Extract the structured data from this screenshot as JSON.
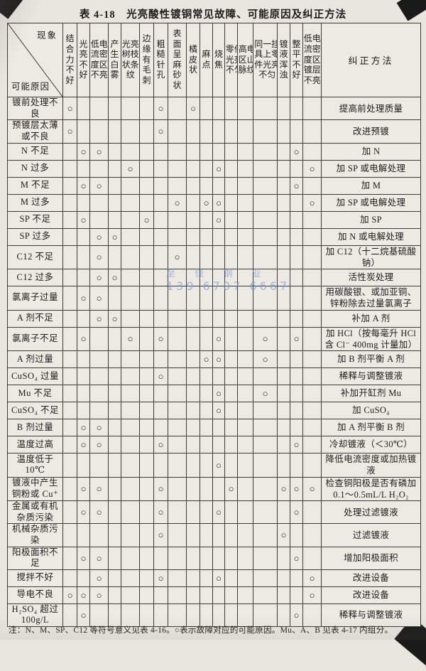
{
  "title": "表 4-18　光亮酸性镀铜常见故障、可能原因及纠正方法",
  "corner": {
    "phenomenon": "现象",
    "cause": "可能原因"
  },
  "correction_header": "纠正方法",
  "mark_symbol": "○",
  "accent_colors": {
    "ink": "#1c1c1c",
    "paper": "#e9e6e0",
    "watermark_blue": "#7d9bd2"
  },
  "columns": [
    {
      "label": "结合力不好",
      "cols": 1
    },
    {
      "label": "光亮不好",
      "cols": 1
    },
    {
      "label": "低电流密度区不亮",
      "cols": 2
    },
    {
      "label": "产生白雾",
      "cols": 1
    },
    {
      "label": "光亮树枝状条纹",
      "cols": 2
    },
    {
      "label": "边缘有毛刺",
      "cols": 1
    },
    {
      "label": "粗糙针孔",
      "cols": 1
    },
    {
      "label": "表面呈麻砂状",
      "cols": 1
    },
    {
      "label": "橘皮状",
      "cols": 1
    },
    {
      "label": "麻点",
      "cols": 1
    },
    {
      "label": "烧焦",
      "cols": 1
    },
    {
      "label": "零件光亮不匀",
      "cols": 2
    },
    {
      "label": "高电区山脉纹",
      "cols": 2
    },
    {
      "label": "同一挂具上零件光亮不匀",
      "cols": 3
    },
    {
      "label": "镀液浑浊",
      "cols": 1
    },
    {
      "label": "整平不好",
      "cols": 1
    },
    {
      "label": "低电流密度区镀层不亮",
      "cols": 2
    }
  ],
  "rows": [
    {
      "cause": "镀前处理不良",
      "marks": [
        0,
        6,
        8
      ],
      "correction": "提高前处理质量"
    },
    {
      "cause": "预镀层太薄或不良",
      "marks": [
        0,
        6
      ],
      "correction": "改进预镀"
    },
    {
      "cause": "N 不足",
      "marks": [
        1,
        2,
        15
      ],
      "correction": "加 N"
    },
    {
      "cause": "N 过多",
      "marks": [
        4,
        10,
        16
      ],
      "correction": "加 SP 或电解处理"
    },
    {
      "cause": "M 不足",
      "marks": [
        1,
        2,
        15
      ],
      "correction": "加 M"
    },
    {
      "cause": "M 过多",
      "marks": [
        7,
        9,
        10,
        16
      ],
      "correction": "加 SP 或电解处理"
    },
    {
      "cause": "SP 不足",
      "marks": [
        1,
        5,
        10
      ],
      "correction": "加 SP"
    },
    {
      "cause": "SP 过多",
      "marks": [
        2,
        3
      ],
      "correction": "加 N 或电解处理"
    },
    {
      "cause": "C12 不足",
      "marks": [
        2,
        7
      ],
      "correction": "加 C12（十二烷基硫酸钠）"
    },
    {
      "cause": "C12 过多",
      "marks": [
        2,
        3
      ],
      "correction": "活性炭处理"
    },
    {
      "cause": "氯离子过量",
      "marks": [
        1,
        2
      ],
      "correction": "用碳酸银、或加亚铜、锌粉除去过量氯离子"
    },
    {
      "cause": "A 剂不足",
      "marks": [
        2,
        3
      ],
      "correction": "补加 A 剂"
    },
    {
      "cause": "氯离子不足",
      "marks": [
        1,
        4,
        6,
        10,
        13,
        15
      ],
      "correction": "加 HCl（按每毫升 HCl 含 Cl⁻ 400mg 计量加）"
    },
    {
      "cause": "A 剂过量",
      "marks": [
        9,
        10,
        13
      ],
      "correction": "加 B 剂平衡 A 剂"
    },
    {
      "cause": "CuSO₄ 过量",
      "marks": [
        6
      ],
      "correction": "稀释与调整镀液"
    },
    {
      "cause": "Mu 不足",
      "marks": [
        10,
        13
      ],
      "correction": "补加开缸剂 Mu"
    },
    {
      "cause": "CuSO₄ 不足",
      "marks": [
        10
      ],
      "correction": "加 CuSO₄"
    },
    {
      "cause": "B 剂过量",
      "marks": [
        1,
        2
      ],
      "correction": "加 A 剂平衡 B 剂"
    },
    {
      "cause": "温度过高",
      "marks": [
        1,
        2,
        6,
        15
      ],
      "correction": "冷却镀液（＜30℃）"
    },
    {
      "cause": "温度低于 10℃",
      "marks": [
        10
      ],
      "correction": "降低电流密度或加热镀液"
    },
    {
      "cause": "镀液中产生铜粉或 Cu⁺",
      "marks": [
        1,
        2,
        6,
        11,
        14,
        15,
        16
      ],
      "correction": "检查铜阳极是否有磷加 0.1～0.5mL/L H₂O₂"
    },
    {
      "cause": "金属或有机杂质污染",
      "marks": [
        1,
        2,
        6,
        10,
        15
      ],
      "correction": "处理过滤镀液"
    },
    {
      "cause": "机械杂质污染",
      "marks": [
        6,
        14
      ],
      "correction": "过滤镀液"
    },
    {
      "cause": "阳极面积不足",
      "marks": [
        1,
        2,
        15
      ],
      "correction": "增加阳极面积"
    },
    {
      "cause": "搅拌不好",
      "marks": [
        2,
        6,
        10,
        16
      ],
      "correction": "改进设备"
    },
    {
      "cause": "导电不良",
      "marks": [
        0,
        1,
        2,
        16
      ],
      "correction": "改进设备"
    },
    {
      "cause": "H₂SO₄ 超过 100g/L",
      "marks": [
        1,
        15
      ],
      "correction": "稀释与调整镀液"
    }
  ],
  "footnote": "注：N、M、SP、C12 等符号意义见表 4-16。○表示故障对应的可能原因。Mu、A、B 见表 4-17 内组分。",
  "watermark": {
    "line1": "至 佳 钢 业",
    "line2": "139 6707 6667"
  }
}
